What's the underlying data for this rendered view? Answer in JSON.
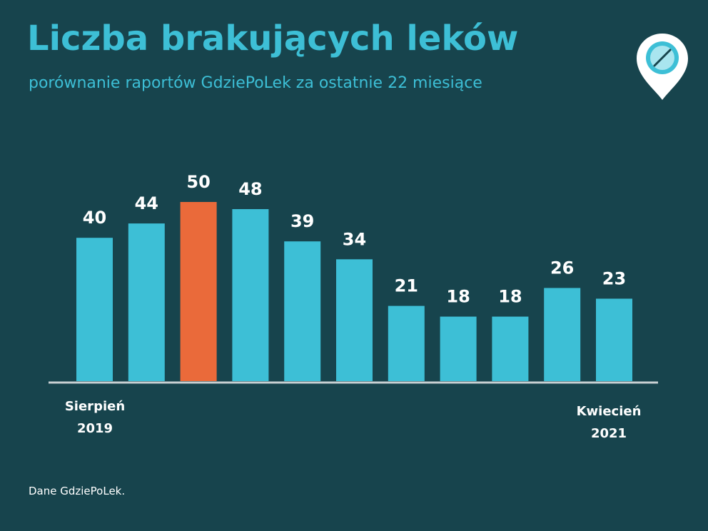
{
  "header": {
    "title": "Liczba brakujących leków",
    "subtitle": "porównanie raportów GdziePoLek za ostatnie 22 miesiące"
  },
  "footer": {
    "source": "Dane GdziePoLek."
  },
  "logo": {
    "icon": "pill-location-pin-icon"
  },
  "colors": {
    "background": "#17444d",
    "bar": "#3dbfd6",
    "highlight_bar": "#ea6a3a",
    "baseline": "#c8d0d2",
    "text": "#ffffff",
    "title": "#3dbfd6"
  },
  "chart_data": {
    "type": "bar",
    "title": "Liczba brakujących leków",
    "subtitle": "porównanie raportów GdziePoLek za ostatnie 22 miesiące",
    "values": [
      40,
      44,
      50,
      48,
      39,
      34,
      21,
      18,
      18,
      26,
      23
    ],
    "highlight_index": 2,
    "ylim": [
      0,
      50
    ],
    "grid": false,
    "x_labels": {
      "first": {
        "line1": "Sierpień",
        "line2": "2019"
      },
      "last": {
        "line1": "Kwiecień",
        "line2": "2021"
      }
    }
  }
}
